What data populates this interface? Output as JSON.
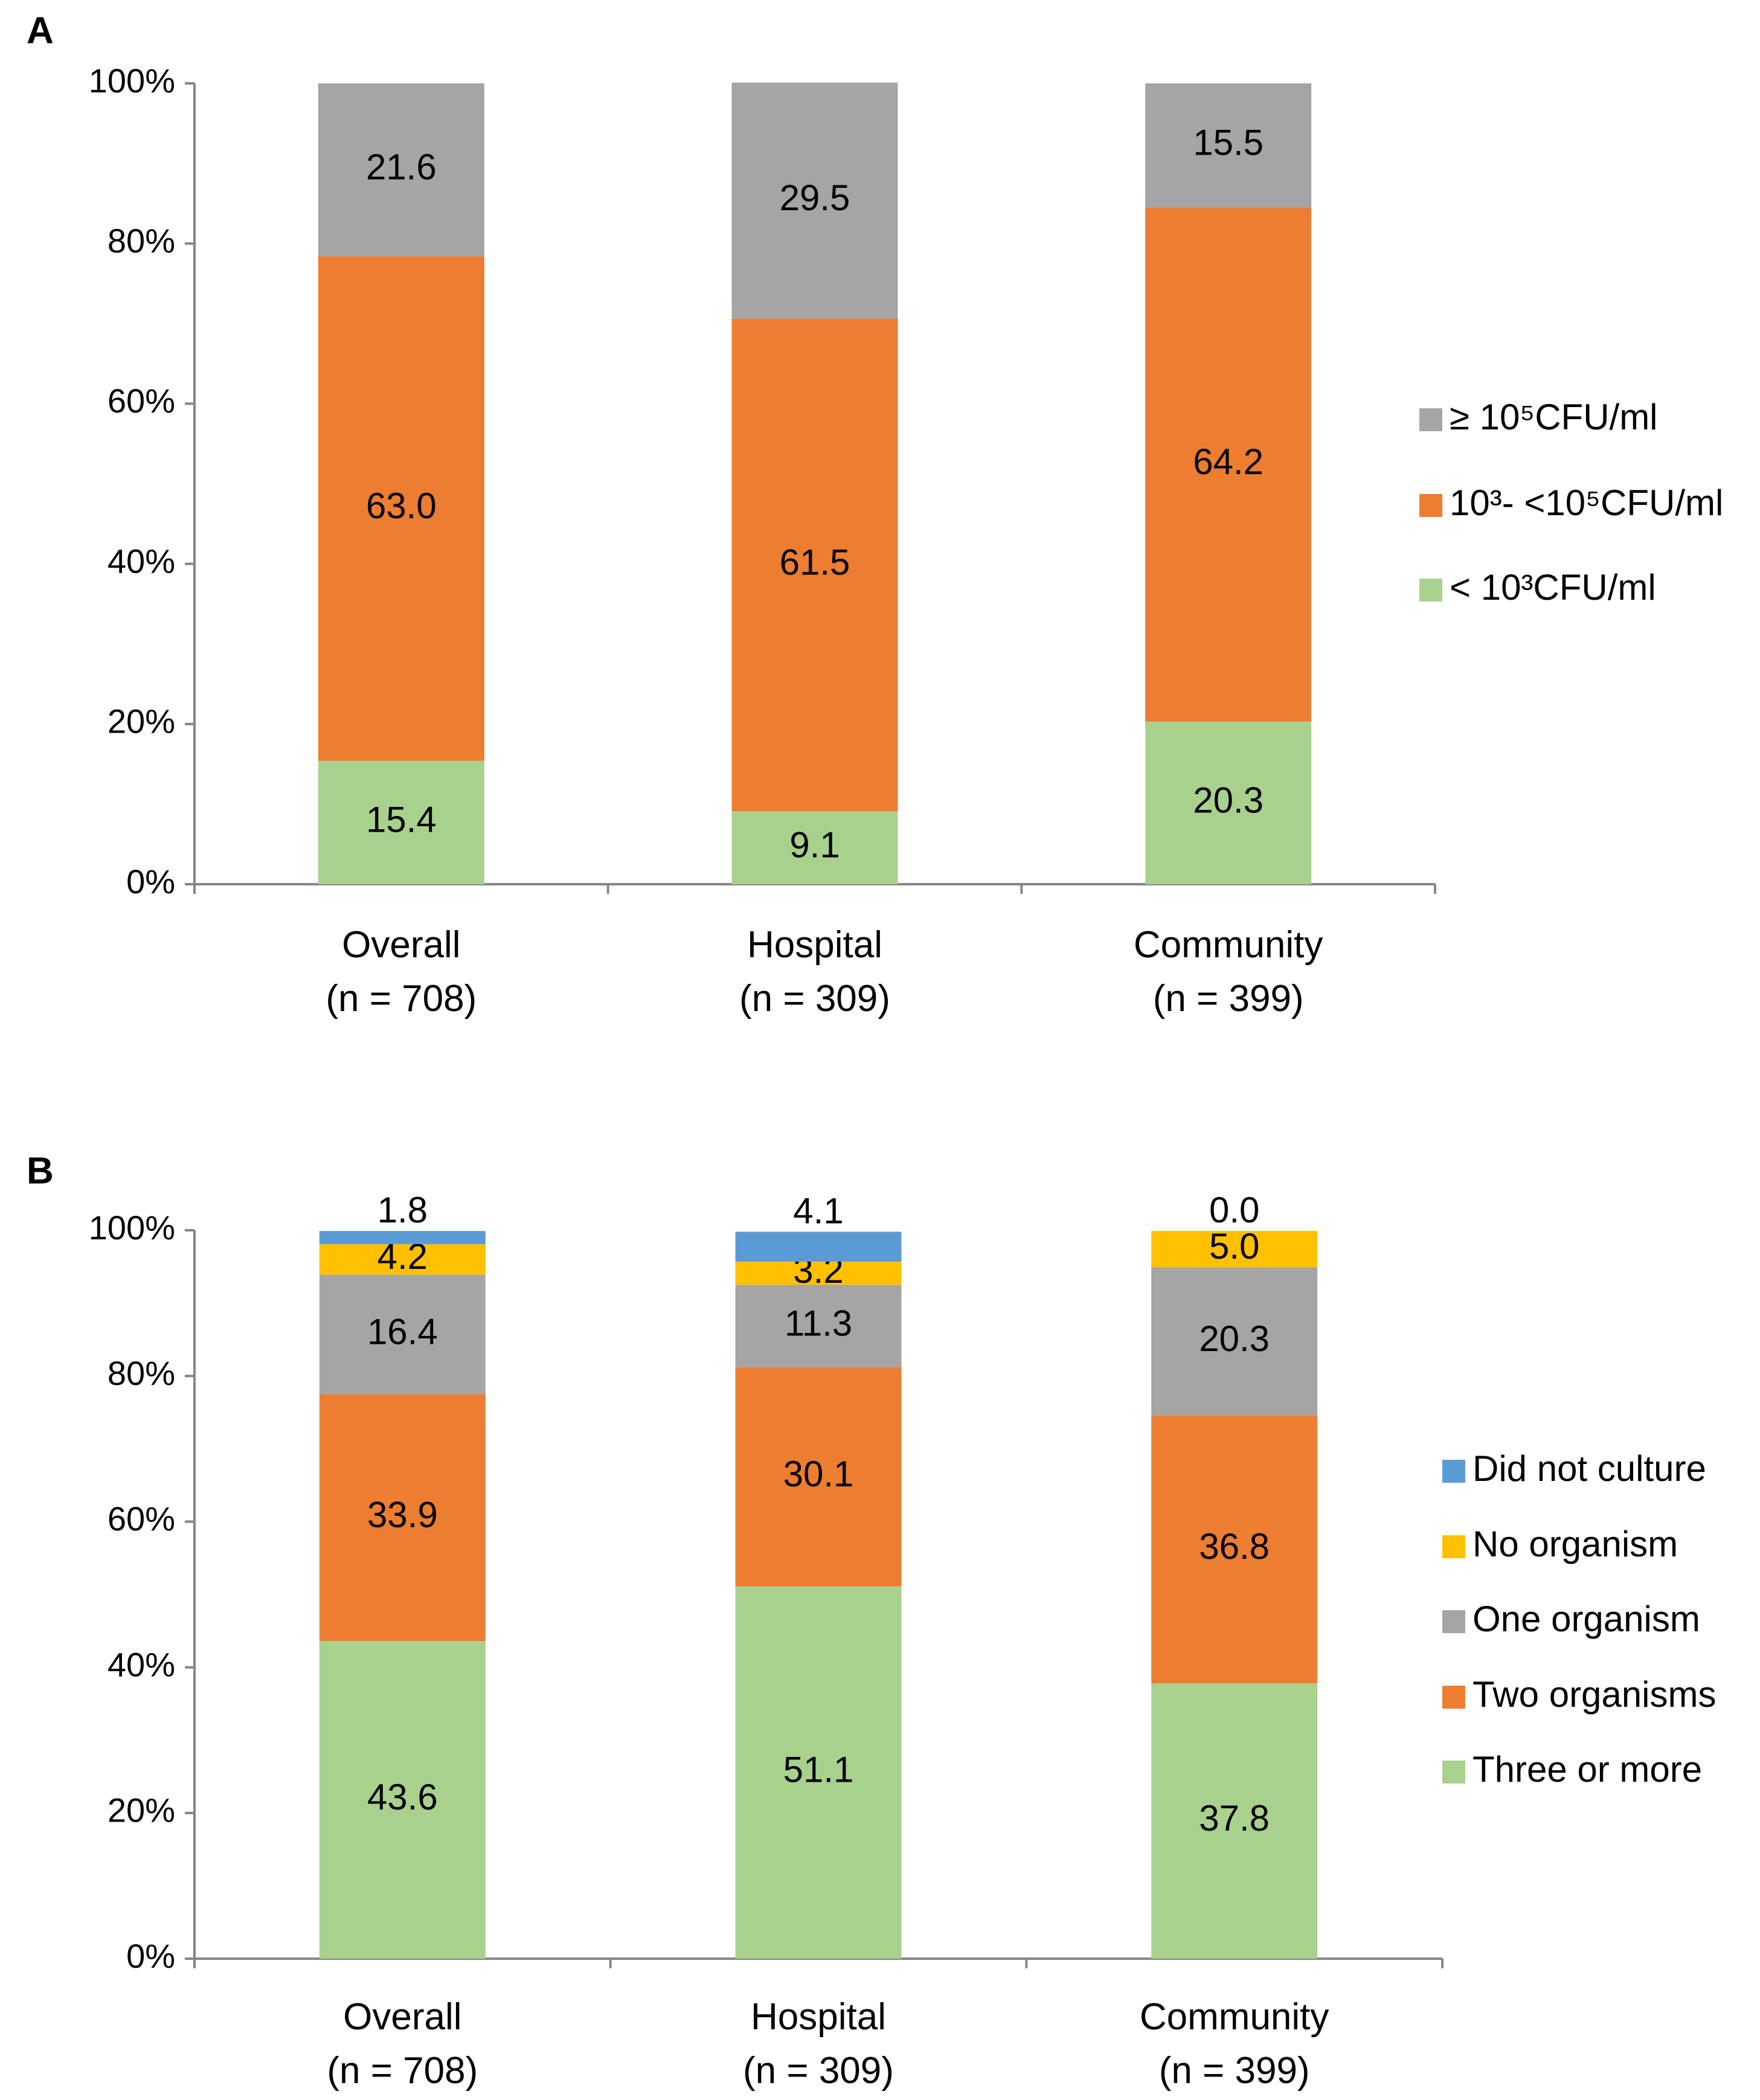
{
  "chart_data": [
    {
      "type": "stacked_bar",
      "title": "A",
      "categories": [
        "Overall\n(n = 708)",
        "Hospital\n(n = 309)",
        "Community\n(n = 399)"
      ],
      "series": [
        {
          "name": "< 10³CFU/ml",
          "color": "#a9d18e",
          "values": [
            15.4,
            9.1,
            20.3
          ],
          "value_labels": [
            "15.4",
            "9.1",
            "20.3"
          ]
        },
        {
          "name": "10³- <10⁵CFU/ml",
          "color": "#ed7d31",
          "values": [
            63.0,
            61.5,
            64.2
          ],
          "value_labels": [
            "63.0",
            "61.5",
            "64.2"
          ]
        },
        {
          "name": "≥ 10⁵CFU/ml",
          "color": "#a5a5a5",
          "values": [
            21.6,
            29.5,
            15.5
          ],
          "value_labels": [
            "21.6",
            "29.5",
            "15.5"
          ]
        }
      ],
      "ylim": [
        0,
        100
      ],
      "yticks": [
        {
          "value": 0,
          "label": "0%"
        },
        {
          "value": 20,
          "label": "20%"
        },
        {
          "value": 40,
          "label": "40%"
        },
        {
          "value": 60,
          "label": "60%"
        },
        {
          "value": 80,
          "label": "80%"
        },
        {
          "value": 100,
          "label": "100%"
        }
      ],
      "legend": "right"
    },
    {
      "type": "stacked_bar",
      "title": "B",
      "categories": [
        "Overall\n(n = 708)",
        "Hospital\n(n = 309)",
        "Community\n(n = 399)"
      ],
      "series": [
        {
          "name": "Three or more",
          "color": "#a9d18e",
          "values": [
            43.6,
            51.1,
            37.8
          ],
          "value_labels": [
            "43.6",
            "51.1",
            "37.8"
          ]
        },
        {
          "name": "Two organisms",
          "color": "#ed7d31",
          "values": [
            33.9,
            30.1,
            36.8
          ],
          "value_labels": [
            "33.9",
            "30.1",
            "36.8"
          ]
        },
        {
          "name": "One organism",
          "color": "#a5a5a5",
          "values": [
            16.4,
            11.3,
            20.3
          ],
          "value_labels": [
            "16.4",
            "11.3",
            "20.3"
          ]
        },
        {
          "name": "No organism",
          "color": "#ffc000",
          "values": [
            4.2,
            3.2,
            5.0
          ],
          "value_labels": [
            "4.2",
            "3.2",
            "5.0"
          ]
        },
        {
          "name": "Did not culture",
          "color": "#5b9bd5",
          "values": [
            1.8,
            4.1,
            0.0
          ],
          "value_labels": [
            "1.8",
            "4.1",
            "0.0"
          ]
        }
      ],
      "ylim": [
        0,
        100
      ],
      "yticks": [
        {
          "value": 0,
          "label": "0%"
        },
        {
          "value": 20,
          "label": "20%"
        },
        {
          "value": 40,
          "label": "40%"
        },
        {
          "value": 60,
          "label": "60%"
        },
        {
          "value": 80,
          "label": "80%"
        },
        {
          "value": 100,
          "label": "100%"
        }
      ],
      "legend": "right"
    }
  ]
}
